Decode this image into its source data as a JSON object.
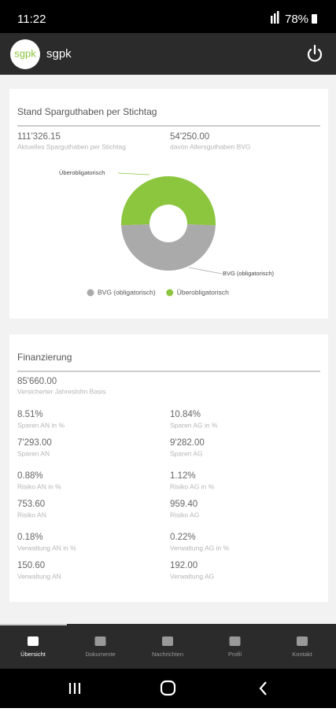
{
  "status_bar": {
    "time": "11:22",
    "battery": "78%"
  },
  "app_bar": {
    "logo": "sgpk",
    "title": "sgpk"
  },
  "chart_data": {
    "type": "pie",
    "title": "Stand Sparguthaben per Stichtag",
    "categories": [
      "BVG (obligatorisch)",
      "Überobligatorisch"
    ],
    "values": [
      54250,
      57076.15
    ],
    "colors": [
      "#aaaaaa",
      "#8cc63f"
    ],
    "donut": true,
    "legend": "bottom"
  },
  "summary": [
    {
      "value": "111'326.15",
      "label": "Aktuelles Sparguthaben per Stichtag"
    },
    {
      "value": "54'250.00",
      "label": "davon Altersguthaben BVG"
    }
  ],
  "financing": {
    "title": "Finanzierung",
    "insured": {
      "value": "85'660.00",
      "label": "Versicherter Jahreslohn Basis"
    },
    "items": [
      {
        "value": "8.51%",
        "label": "Sparen AN in %"
      },
      {
        "value": "10.84%",
        "label": "Sparen AG in %"
      },
      {
        "value": "7'293.00",
        "label": "Sparen AN"
      },
      {
        "value": "9'282.00",
        "label": "Sparen AG"
      },
      {
        "value": "0.88%",
        "label": "Risiko AN in %"
      },
      {
        "value": "1.12%",
        "label": "Risiko AG in %"
      },
      {
        "value": "753.60",
        "label": "Risiko AN"
      },
      {
        "value": "959.40",
        "label": "Risiko AG"
      },
      {
        "value": "0.18%",
        "label": "Verwaltung AN in %"
      },
      {
        "value": "0.22%",
        "label": "Verwaltung AG in %"
      },
      {
        "value": "150.60",
        "label": "Verwaltung AN"
      },
      {
        "value": "192.00",
        "label": "Verwaltung AG"
      }
    ]
  },
  "nav": [
    "Übersicht",
    "Dokumente",
    "Nachrichten",
    "Profil",
    "Kontakt"
  ]
}
